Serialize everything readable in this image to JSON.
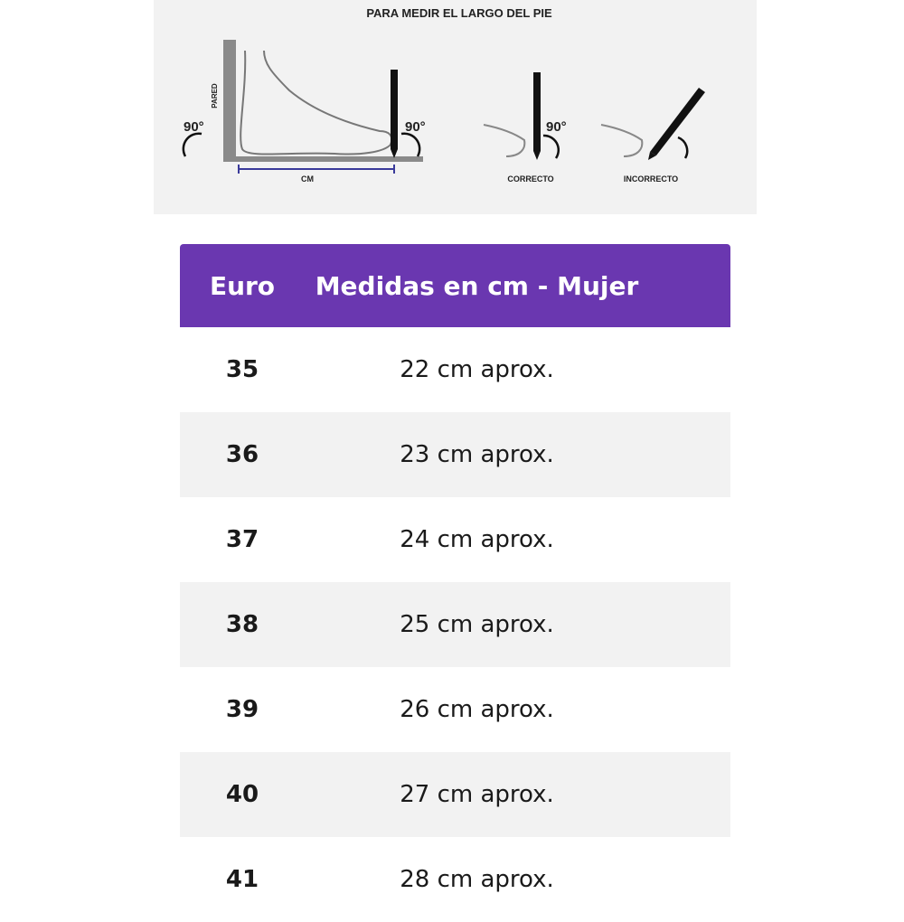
{
  "diagram": {
    "title": "PARA MEDIR EL LARGO DEL PIE",
    "wall_label": "PARED",
    "angle_left": "90°",
    "angle_right": "90°",
    "angle_correct": "90°",
    "length_label": "CM",
    "correct_label": "CORRECTO",
    "incorrect_label": "INCORRECTO"
  },
  "table": {
    "header_color": "#6a37b0",
    "headers": [
      "Euro",
      "Medidas en cm - Mujer"
    ],
    "rows": [
      {
        "euro": "35",
        "cm": "22 cm aprox."
      },
      {
        "euro": "36",
        "cm": "23 cm aprox."
      },
      {
        "euro": "37",
        "cm": "24 cm aprox."
      },
      {
        "euro": "38",
        "cm": "25 cm aprox."
      },
      {
        "euro": "39",
        "cm": "26 cm aprox."
      },
      {
        "euro": "40",
        "cm": "27 cm aprox."
      },
      {
        "euro": "41",
        "cm": "28 cm aprox."
      }
    ]
  }
}
